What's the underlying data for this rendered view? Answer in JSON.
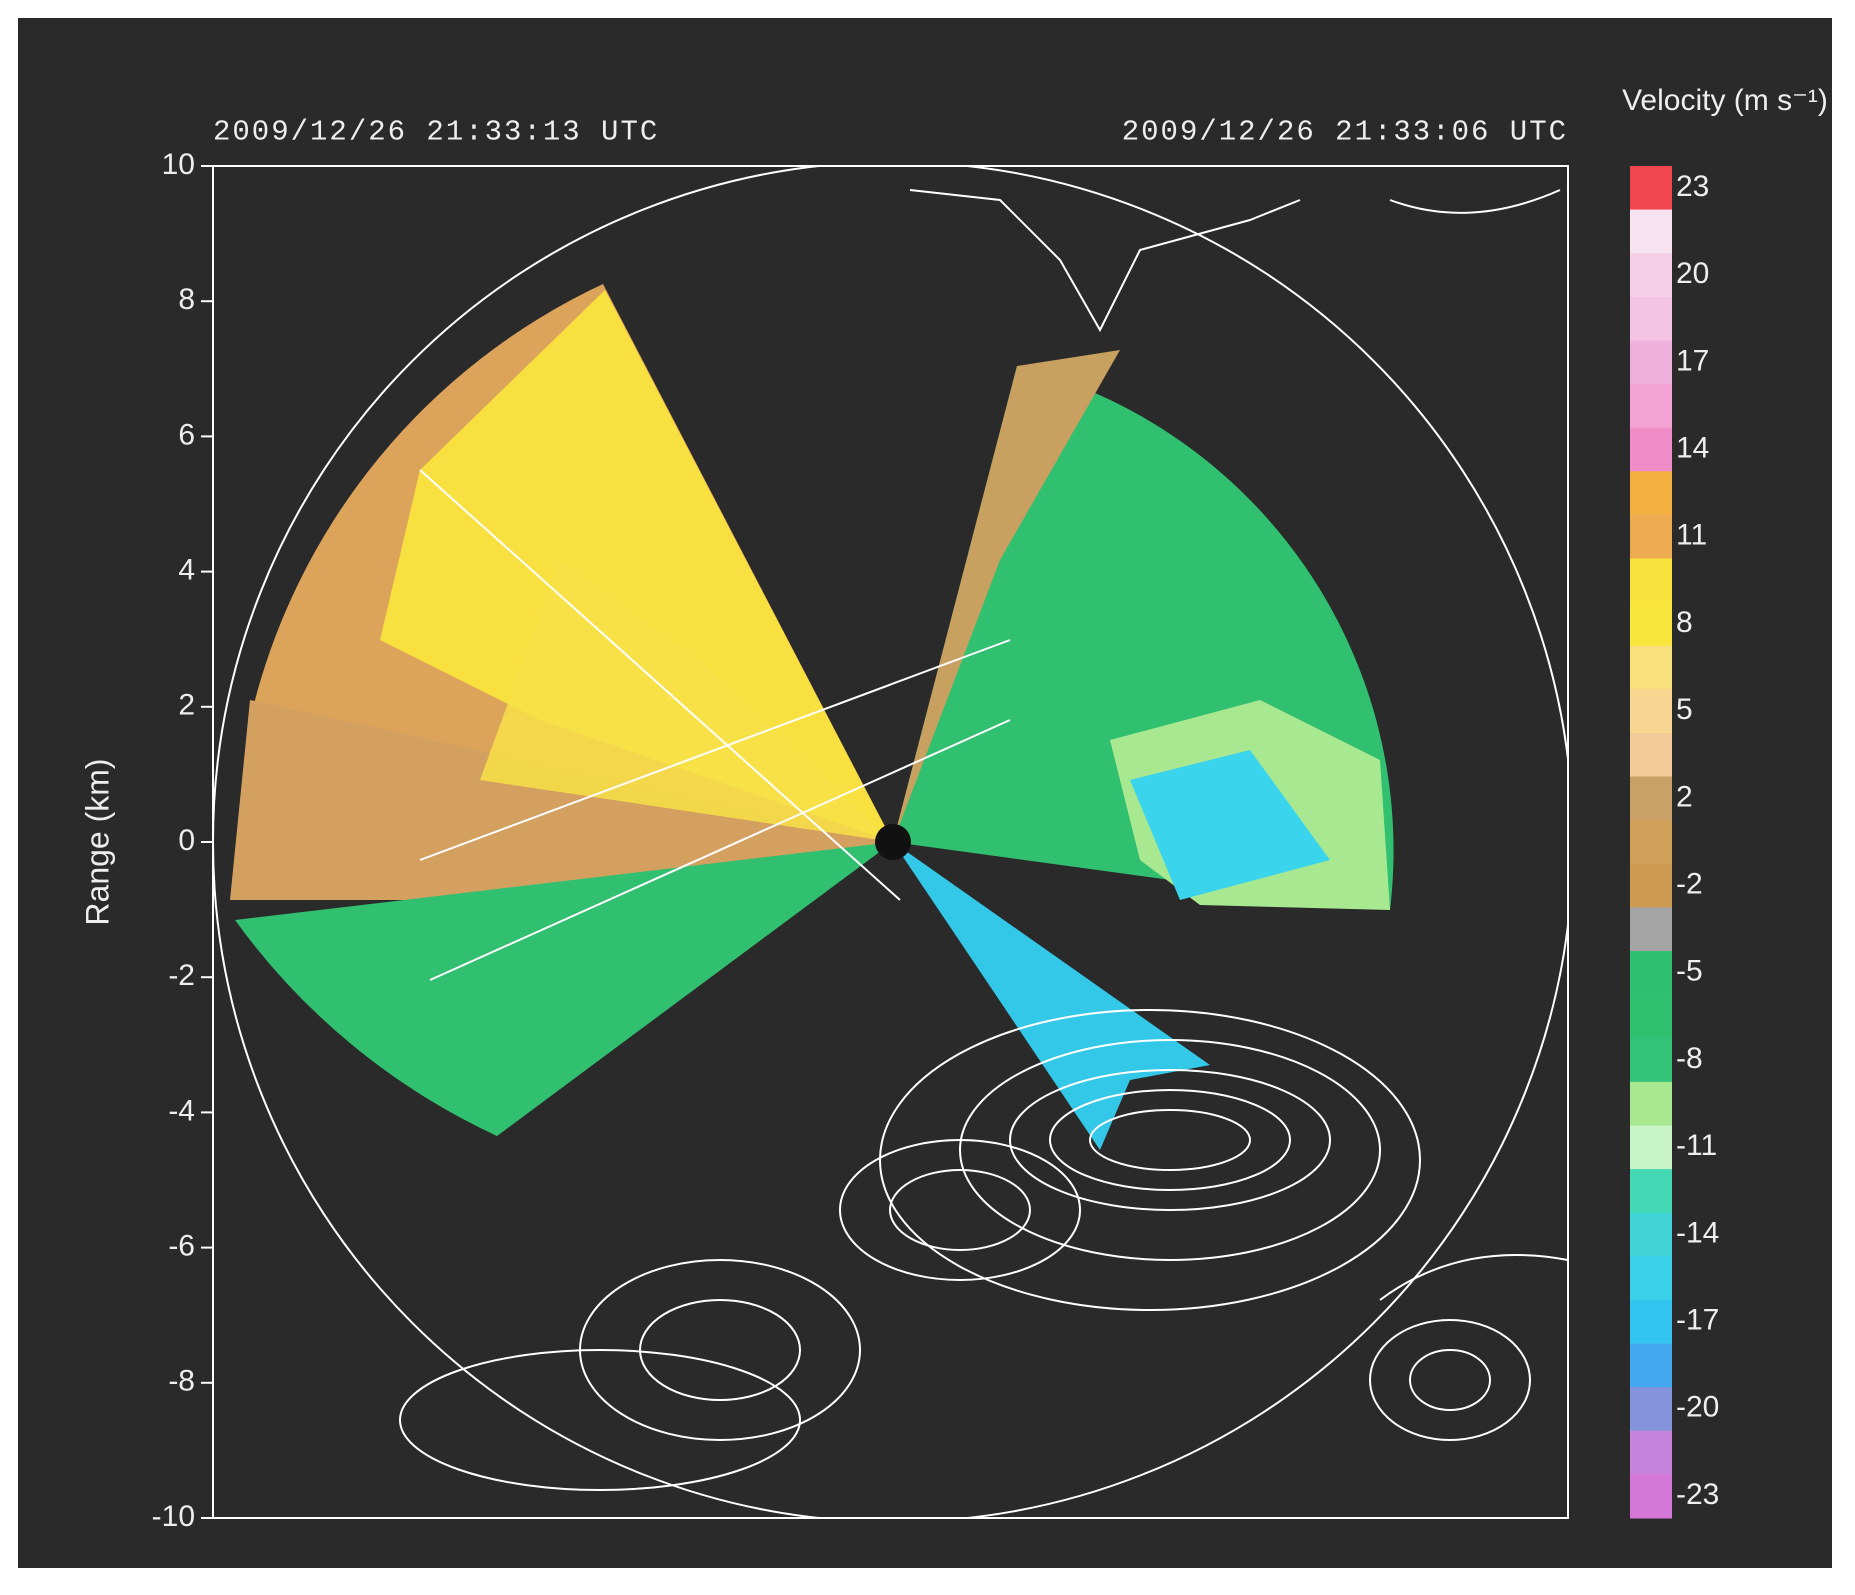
{
  "chart_data": {
    "type": "radar-ppi",
    "timestamps": [
      "2009/12/26 21:33:13 UTC",
      "2009/12/26 21:33:06 UTC"
    ],
    "ylabel": "Range (km)",
    "ylim": [
      -10,
      10
    ],
    "yticks": [
      10,
      8,
      6,
      4,
      2,
      0,
      -2,
      -4,
      -6,
      -8,
      -10
    ],
    "colorbar": {
      "label": "Velocity (m s⁻¹)",
      "ticks": [
        23,
        20,
        17,
        14,
        11,
        8,
        5,
        2,
        -2,
        -5,
        -8,
        -11,
        -14,
        -17,
        -20,
        -23
      ],
      "colors": [
        "#f0464e",
        "#f8e4f0",
        "#f4d0e8",
        "#f4c4e4",
        "#f0b0dc",
        "#f4a4d4",
        "#f08cc8",
        "#f4b040",
        "#eeaa50",
        "#f8e23c",
        "#f8e63c",
        "#f8e07c",
        "#f6d690",
        "#f2ca98",
        "#c8a068",
        "#d0a058",
        "#cc9a50",
        "#a4a4a4",
        "#2ec070",
        "#30c070",
        "#34c278",
        "#a8e890",
        "#c8f4c8",
        "#44d8b4",
        "#40d4d8",
        "#3ad0e8",
        "#34c4f0",
        "#44a8f0",
        "#8494dc",
        "#c884dc",
        "#d478d8"
      ]
    }
  }
}
